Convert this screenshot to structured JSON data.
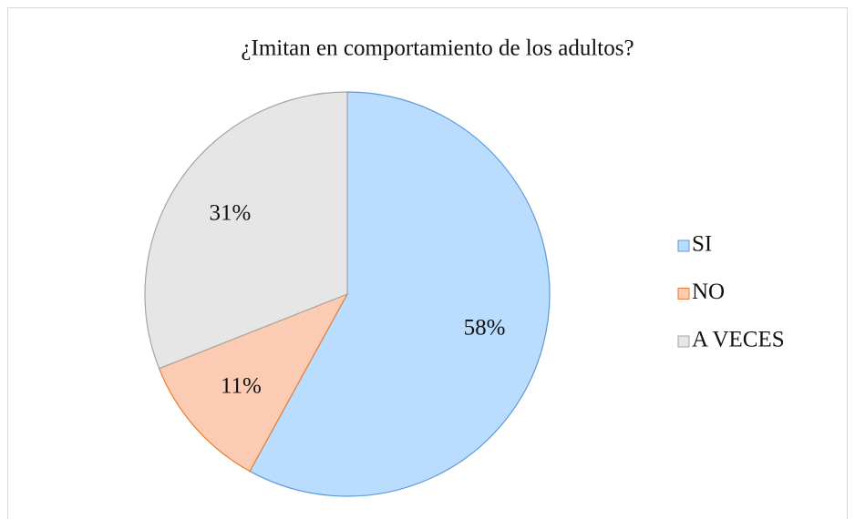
{
  "chart_data": {
    "type": "pie",
    "title": "¿Imitan en comportamiento de los adultos?",
    "categories": [
      "SI",
      "NO",
      "A VECES"
    ],
    "values": [
      58,
      11,
      31
    ],
    "value_labels": [
      "58%",
      "11%",
      "31%"
    ],
    "colors": [
      "#b9dcff",
      "#fccbb3",
      "#e6e6e6"
    ],
    "border_colors": [
      "#5b9bd5",
      "#ed7d31",
      "#a5a5a5"
    ],
    "legend": "right"
  }
}
